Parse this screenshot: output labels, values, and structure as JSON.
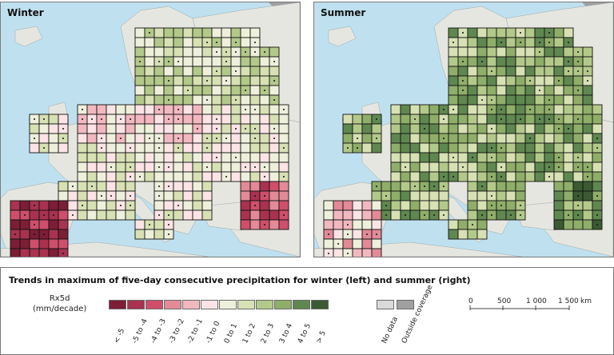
{
  "panels": [
    {
      "id": "winter",
      "title": "Winter"
    },
    {
      "id": "summer",
      "title": "Summer"
    }
  ],
  "legend": {
    "title": "Trends in maximum of five-day consecutive precipitation for winter (left) and summer (right)",
    "unit_line1": "Rx5d",
    "unit_line2": "(mm/decade)",
    "classes": [
      {
        "label": "< -5",
        "color": "#7c1e35"
      },
      {
        "label": "-5 to -4",
        "color": "#a8324f"
      },
      {
        "label": "-4 to -3",
        "color": "#cf4f6b"
      },
      {
        "label": "-3 to -2",
        "color": "#e28a97"
      },
      {
        "label": "-2 to -1",
        "color": "#f2b8c0"
      },
      {
        "label": "-1 to 0",
        "color": "#fce4e6"
      },
      {
        "label": "0 to 1",
        "color": "#eef0dc"
      },
      {
        "label": "1 to 2",
        "color": "#d7e1b4"
      },
      {
        "label": "2 to 3",
        "color": "#b3c98a"
      },
      {
        "label": "3 to 4",
        "color": "#8fae69"
      },
      {
        "label": "4 to 5",
        "color": "#5f8850"
      },
      {
        "label": "> 5",
        "color": "#3b5a33"
      }
    ],
    "extra": [
      {
        "label": "No data",
        "color": "#dadada"
      },
      {
        "label": "Outside coverage",
        "color": "#a0a0a0"
      }
    ],
    "scale": {
      "ticks": [
        "0",
        "500",
        "1 000",
        "1 500"
      ],
      "unit": "km"
    }
  },
  "colors": {
    "sea": "#bfe0ef",
    "land_outside": "#a0a0a0",
    "land_nodata": "#e6e6e0",
    "grid": "#111111"
  }
}
